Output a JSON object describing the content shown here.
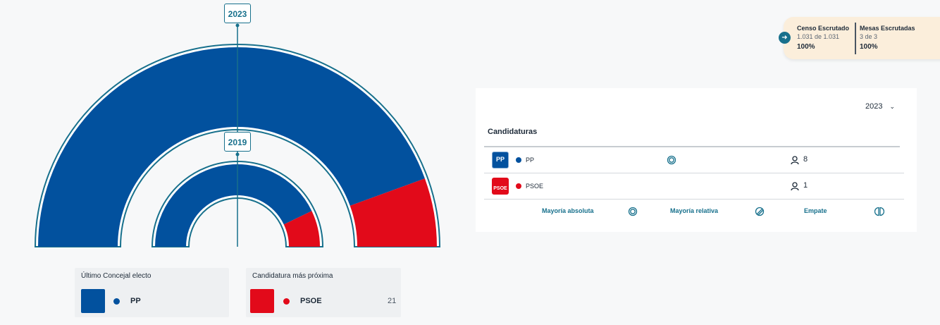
{
  "hemicycle": {
    "outer": {
      "year": "2023",
      "segments": [
        {
          "party": "PP",
          "seats": 8,
          "color": "#02519e"
        },
        {
          "party": "PSOE",
          "seats": 1,
          "color": "#e20a1a"
        }
      ]
    },
    "inner": {
      "year": "2019",
      "segments": [
        {
          "party": "PP",
          "seats": 6,
          "color": "#02519e"
        },
        {
          "party": "PSOE",
          "seats": 1,
          "color": "#e20a1a"
        }
      ]
    }
  },
  "last_elected": {
    "title": "Último Concejal electo",
    "party": "PP",
    "color": "#02519e"
  },
  "next_candidate": {
    "title": "Candidatura más próxima",
    "party": "PSOE",
    "votes": "21",
    "color": "#e20a1a"
  },
  "scrutiny": {
    "census": {
      "title": "Censo Escrutado",
      "detail": "1.031 de 1.031",
      "pct": "100%"
    },
    "tables": {
      "title": "Mesas Escrutadas",
      "detail": "3 de 3",
      "pct": "100%"
    }
  },
  "panel": {
    "year_selector": "2023",
    "title": "Candidaturas",
    "rows": [
      {
        "logo": "PP",
        "name": "PP",
        "seats": "8",
        "color": "#02519e",
        "majority": "absoluta"
      },
      {
        "logo": "PSOE",
        "name": "PSOE",
        "seats": "1",
        "color": "#e20a1a"
      }
    ],
    "legend": {
      "absolute": "Mayoría absoluta",
      "relative": "Mayoría relativa",
      "tie": "Empate"
    }
  },
  "colors": {
    "accent": "#17708c",
    "pp": "#02519e",
    "psoe": "#e20a1a"
  }
}
